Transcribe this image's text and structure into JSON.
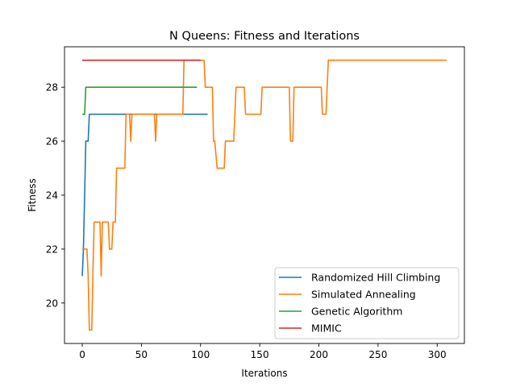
{
  "chart_data": {
    "type": "line",
    "title": "N Queens: Fitness and Iterations",
    "xlabel": "Iterations",
    "ylabel": "Fitness",
    "xlim": [
      -15,
      323
    ],
    "ylim": [
      18.5,
      29.5
    ],
    "xticks": [
      0,
      50,
      100,
      150,
      200,
      250,
      300
    ],
    "yticks": [
      20,
      22,
      24,
      26,
      28
    ],
    "grid": false,
    "legend_position": "lower-right",
    "series": [
      {
        "name": "Randomized Hill Climbing",
        "color": "#1f77b4",
        "points": [
          [
            0,
            21
          ],
          [
            1,
            22
          ],
          [
            2,
            24
          ],
          [
            3,
            26
          ],
          [
            5,
            26
          ],
          [
            6,
            27
          ],
          [
            106,
            27
          ]
        ]
      },
      {
        "name": "Simulated Annealing",
        "color": "#ff7f0e",
        "points": [
          [
            0,
            22
          ],
          [
            4,
            22
          ],
          [
            5,
            21
          ],
          [
            6,
            19
          ],
          [
            8,
            19
          ],
          [
            10,
            23
          ],
          [
            15,
            23
          ],
          [
            16,
            21
          ],
          [
            17,
            23
          ],
          [
            22,
            23
          ],
          [
            23,
            22
          ],
          [
            25,
            22
          ],
          [
            26,
            23
          ],
          [
            28,
            23
          ],
          [
            29,
            25
          ],
          [
            36,
            25
          ],
          [
            37,
            27
          ],
          [
            40,
            27
          ],
          [
            41,
            26
          ],
          [
            42,
            27
          ],
          [
            61,
            27
          ],
          [
            62,
            26
          ],
          [
            63,
            27
          ],
          [
            85,
            27
          ],
          [
            86,
            29
          ],
          [
            103,
            29
          ],
          [
            104,
            28
          ],
          [
            110,
            28
          ],
          [
            111,
            26
          ],
          [
            112,
            26
          ],
          [
            114,
            25
          ],
          [
            120,
            25
          ],
          [
            121,
            26
          ],
          [
            128,
            26
          ],
          [
            130,
            28
          ],
          [
            137,
            28
          ],
          [
            138,
            27
          ],
          [
            151,
            27
          ],
          [
            152,
            28
          ],
          [
            175,
            28
          ],
          [
            176,
            26
          ],
          [
            178,
            26
          ],
          [
            179,
            28
          ],
          [
            202,
            28
          ],
          [
            203,
            27
          ],
          [
            206,
            27
          ],
          [
            208,
            29
          ],
          [
            308,
            29
          ]
        ]
      },
      {
        "name": "Genetic Algorithm",
        "color": "#2ca02c",
        "points": [
          [
            0,
            27
          ],
          [
            2,
            27
          ],
          [
            3,
            28
          ],
          [
            97,
            28
          ]
        ]
      },
      {
        "name": "MIMIC",
        "color": "#d62728",
        "points": [
          [
            0,
            29
          ],
          [
            100,
            29
          ]
        ]
      }
    ]
  }
}
